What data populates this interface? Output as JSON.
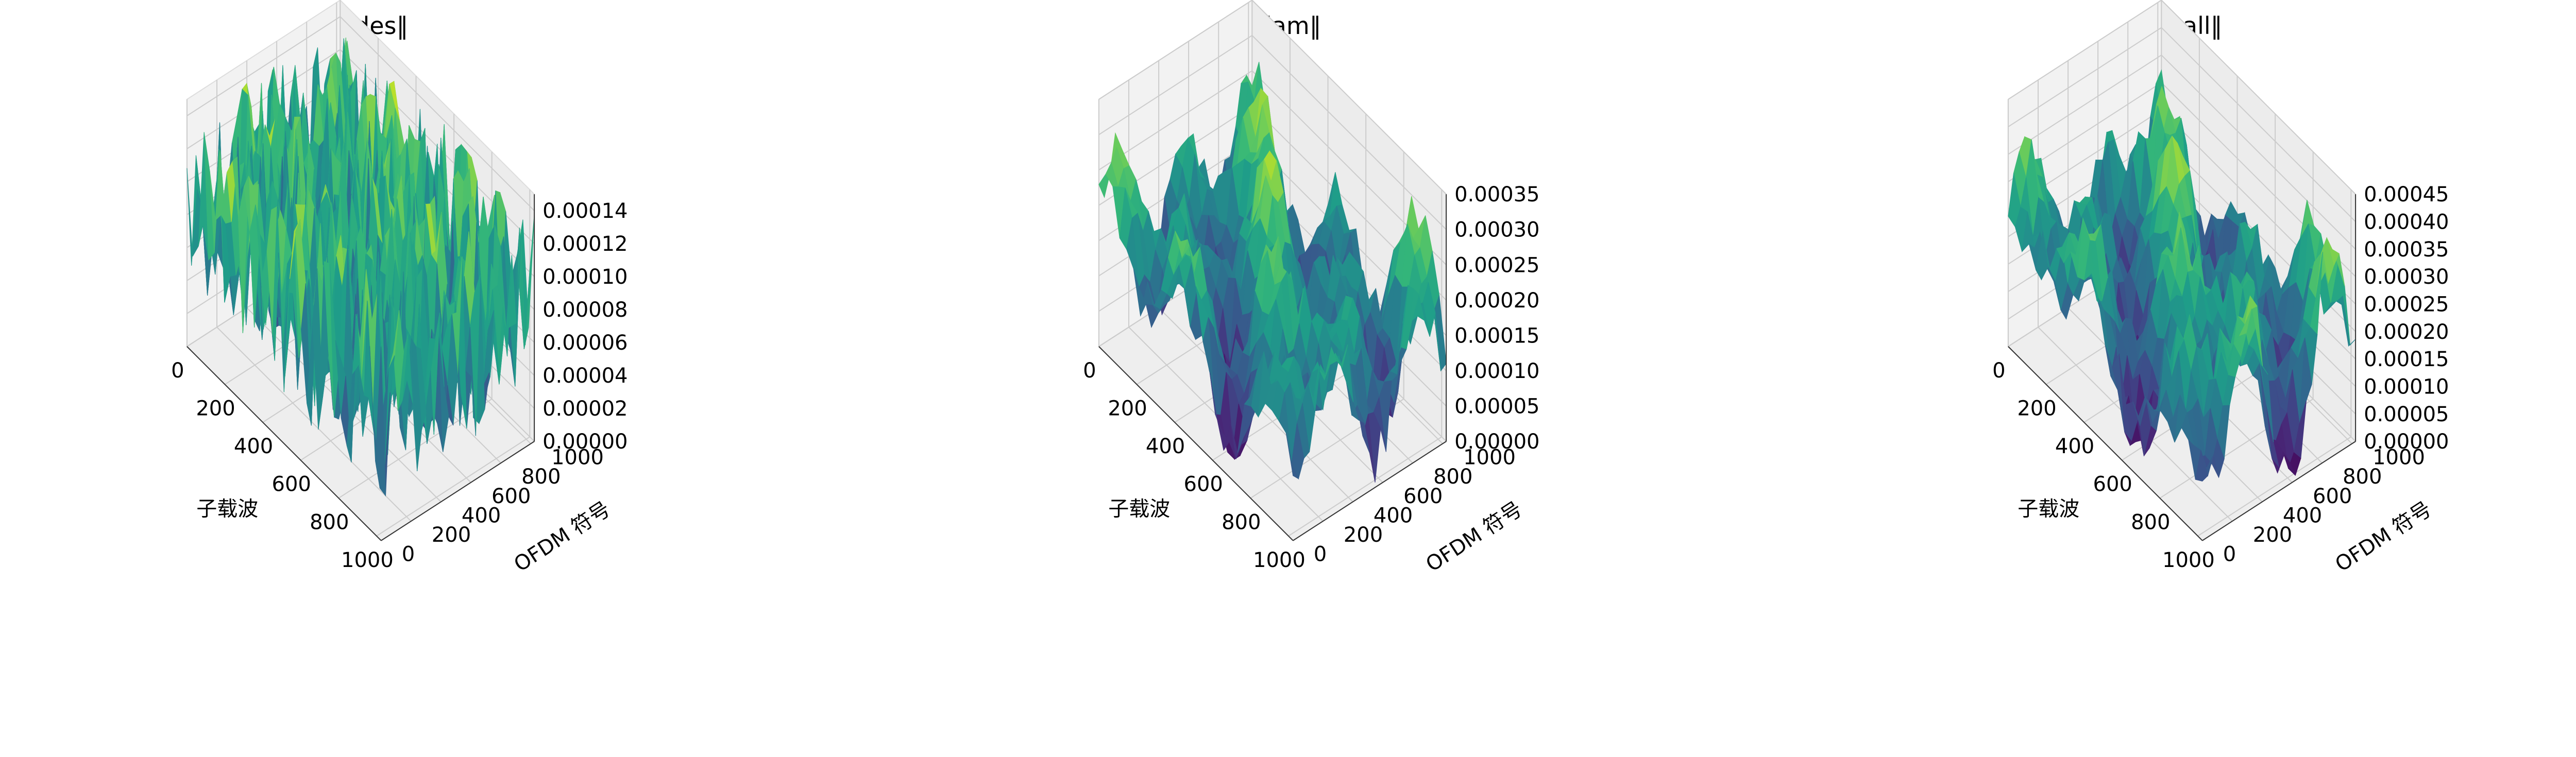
{
  "chart_data": [
    {
      "type": "surface",
      "title": "‖H_des‖",
      "xlabel": "子载波",
      "ylabel": "OFDM 符号",
      "zlabel": "",
      "colormap": "viridis",
      "xlim": [
        0,
        1024
      ],
      "ylim": [
        0,
        1024
      ],
      "zlim": [
        0,
        0.00015
      ],
      "xticks": [
        "0",
        "200",
        "400",
        "600",
        "800",
        "1000"
      ],
      "yticks": [
        "0",
        "200",
        "400",
        "600",
        "800",
        "1000"
      ],
      "zticks": [
        "0.00000",
        "0.00002",
        "0.00004",
        "0.00006",
        "0.00008",
        "0.00010",
        "0.00012",
        "0.00014"
      ],
      "z_typical_range": [
        0.0,
        0.00015
      ],
      "texture": "noisy",
      "grid": true
    },
    {
      "type": "surface",
      "title": "‖H_jam‖",
      "xlabel": "子载波",
      "ylabel": "OFDM 符号",
      "zlabel": "",
      "colormap": "viridis",
      "xlim": [
        0,
        1024
      ],
      "ylim": [
        0,
        1024
      ],
      "zlim": [
        0,
        0.00035
      ],
      "xticks": [
        "0",
        "200",
        "400",
        "600",
        "800",
        "1000"
      ],
      "yticks": [
        "0",
        "200",
        "400",
        "600",
        "800",
        "1000"
      ],
      "zticks": [
        "0.00000",
        "0.00005",
        "0.00010",
        "0.00015",
        "0.00020",
        "0.00025",
        "0.00030",
        "0.00035"
      ],
      "z_typical_range": [
        0.0,
        0.00035
      ],
      "texture": "smooth-peaks",
      "grid": true
    },
    {
      "type": "surface",
      "title": "‖H_all‖",
      "xlabel": "子载波",
      "ylabel": "OFDM 符号",
      "zlabel": "",
      "colormap": "viridis",
      "xlim": [
        0,
        1024
      ],
      "ylim": [
        0,
        1024
      ],
      "zlim": [
        0,
        0.00045
      ],
      "xticks": [
        "0",
        "200",
        "400",
        "600",
        "800",
        "1000"
      ],
      "yticks": [
        "0",
        "200",
        "400",
        "600",
        "800",
        "1000"
      ],
      "zticks": [
        "0.00000",
        "0.00005",
        "0.00010",
        "0.00015",
        "0.00020",
        "0.00025",
        "0.00030",
        "0.00035",
        "0.00040",
        "0.00045"
      ],
      "z_typical_range": [
        0.0,
        0.00045
      ],
      "texture": "smooth-peaks",
      "grid": true
    }
  ]
}
